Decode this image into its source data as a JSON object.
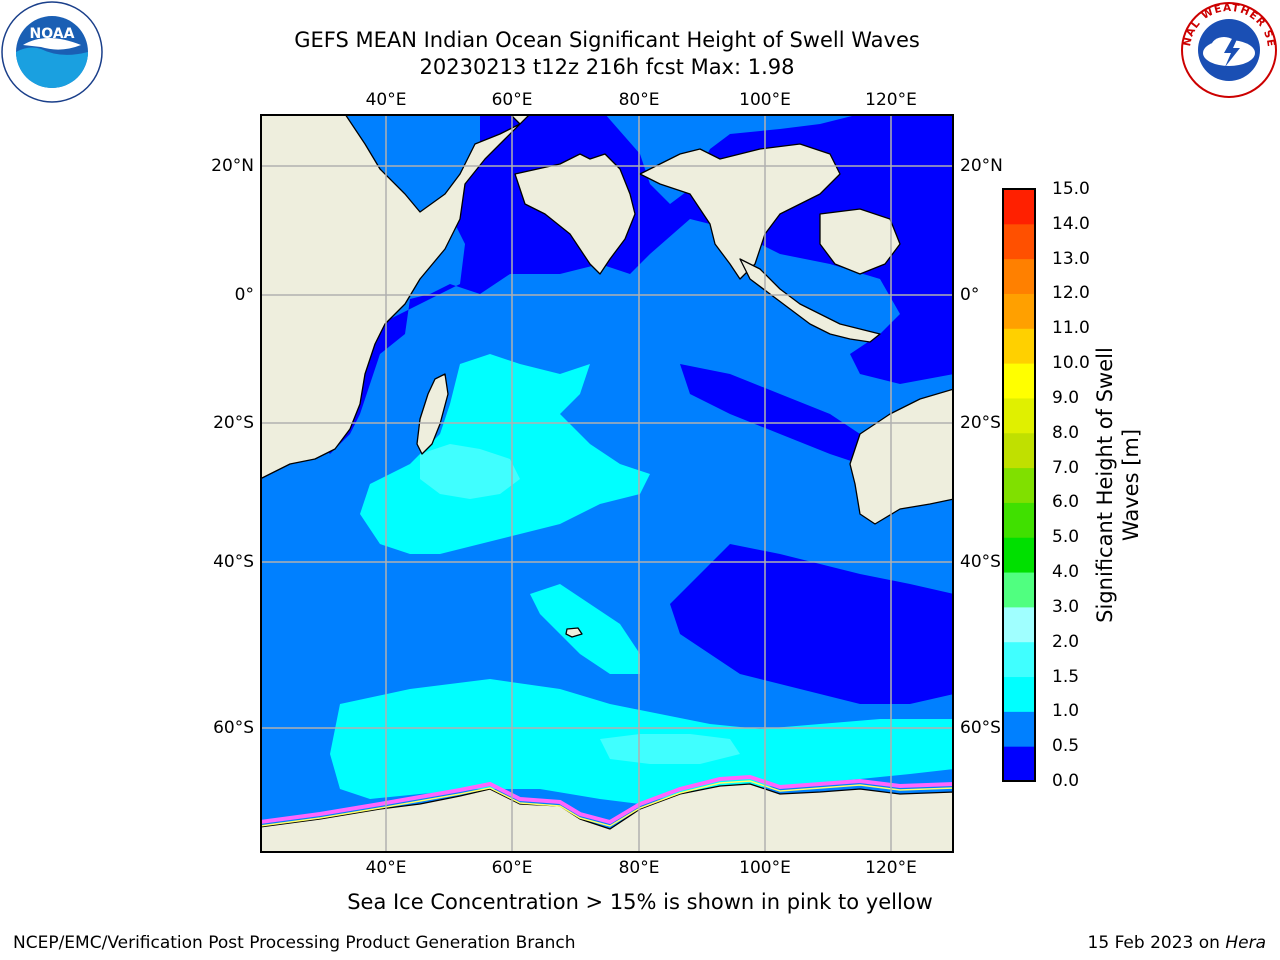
{
  "header": {
    "title_line1": "GEFS MEAN Indian Ocean Significant Height of Swell Waves",
    "title_line2": "20230213 t12z 216h fcst   Max: 1.98"
  },
  "logos": {
    "left": {
      "name": "noaa-logo",
      "text": "NOAA"
    },
    "right": {
      "name": "national-weather-service-logo",
      "text": "NATIONAL WEATHER SERVICE"
    }
  },
  "map": {
    "lon_labels": [
      "40°E",
      "60°E",
      "80°E",
      "100°E",
      "120°E"
    ],
    "lat_labels_left": [
      "20°N",
      "0°",
      "20°S",
      "40°S",
      "60°S"
    ],
    "lat_labels_right": [
      "20°N",
      "0°",
      "20°S",
      "40°S",
      "60°S"
    ],
    "colors": {
      "land": "#eeeedd",
      "coast": "#000000",
      "grid": "#b0b0b0",
      "sea_ice_edge": "#ff66ff"
    }
  },
  "colorbar": {
    "label": "Significant Height of Swell Waves [m]",
    "ticks": [
      "0.0",
      "0.5",
      "1.0",
      "1.5",
      "2.0",
      "3.0",
      "4.0",
      "5.0",
      "6.0",
      "7.0",
      "8.0",
      "9.0",
      "10.0",
      "11.0",
      "12.0",
      "13.0",
      "14.0",
      "15.0"
    ],
    "colors": [
      "#0000ff",
      "#0080ff",
      "#00ffff",
      "#40ffff",
      "#a0ffff",
      "#50ff80",
      "#00e000",
      "#40e000",
      "#80e000",
      "#c0e000",
      "#e0f000",
      "#ffff00",
      "#ffd000",
      "#ffa000",
      "#ff8000",
      "#ff5000",
      "#ff2000"
    ]
  },
  "footer": {
    "note": "Sea Ice Concentration > 15% is shown in pink to yellow",
    "left": "NCEP/EMC/Verification Post Processing Product Generation Branch",
    "right_date": "15 Feb 2023 on",
    "right_machine": "Hera"
  }
}
